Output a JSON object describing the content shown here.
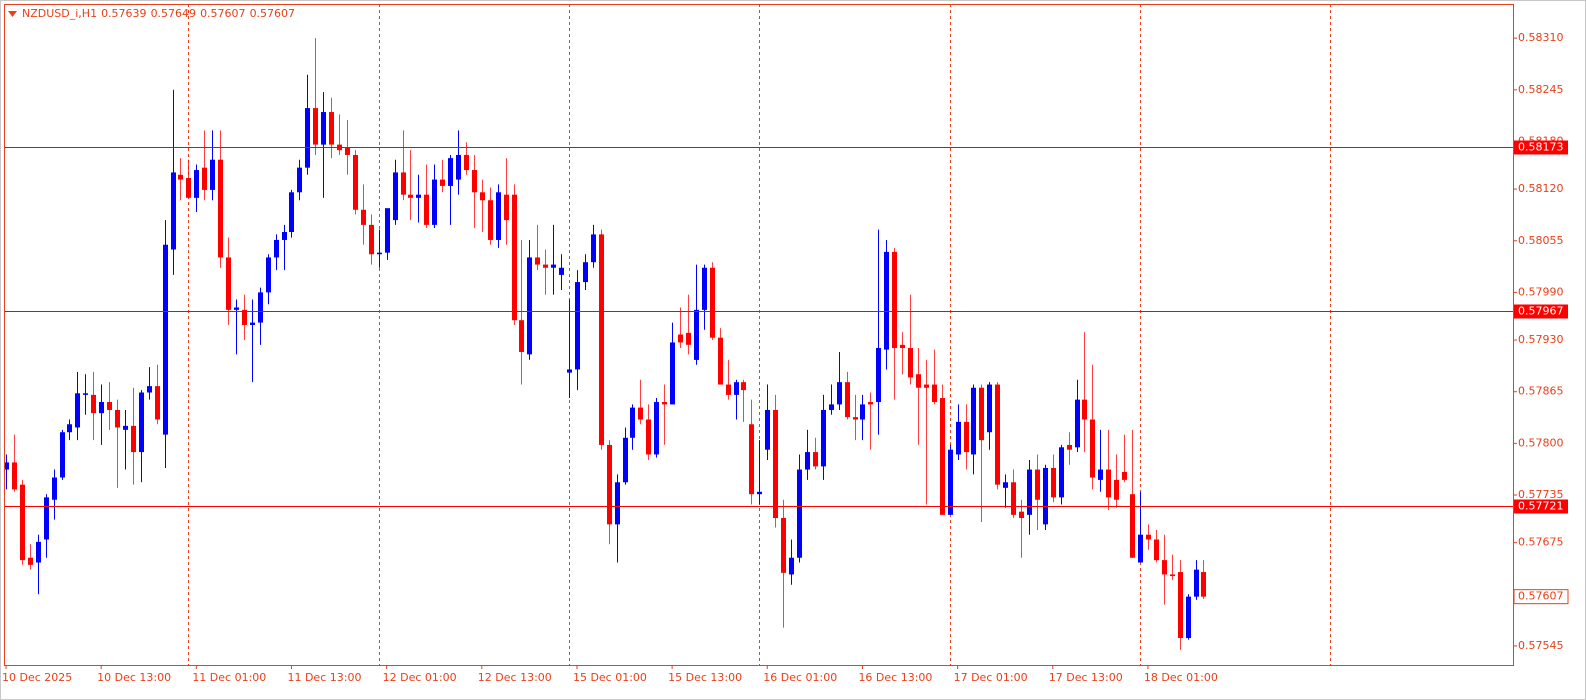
{
  "chart_data": {
    "type": "candlestick",
    "symbol": "NZDUSD_i,H1",
    "header_ohlc": [
      0.57639,
      0.57649,
      0.57607,
      0.57607
    ],
    "up_color": "#0000ff",
    "down_color": "#ff0000",
    "axis_color": "#e8401a",
    "level_color": "#ff0000",
    "ylim": [
      0.57521,
      0.58353
    ],
    "yticks": [
      {
        "value": 0.5831,
        "label": "0.58310"
      },
      0.58245,
      {
        "value": 0.5818,
        "label": "0.58180"
      },
      {
        "value": 0.5812,
        "label": "0.58120"
      },
      0.58055,
      {
        "value": 0.5799,
        "label": "0.57990"
      },
      {
        "value": 0.5793,
        "label": "0.57930"
      },
      0.57865,
      {
        "value": 0.578,
        "label": "0.57800"
      },
      0.57735,
      0.57675,
      0.57545
    ],
    "levels": [
      0.58173,
      0.57967,
      0.57721
    ],
    "last_price": 0.57607,
    "categories": [
      "10 Dec 2025",
      null,
      null,
      null,
      null,
      null,
      null,
      null,
      null,
      null,
      null,
      null,
      "10 Dec 13:00",
      null,
      null,
      null,
      null,
      null,
      null,
      null,
      null,
      null,
      null,
      null,
      "11 Dec 01:00",
      null,
      null,
      null,
      null,
      null,
      null,
      null,
      null,
      null,
      null,
      null,
      "11 Dec 13:00",
      null,
      null,
      null,
      null,
      null,
      null,
      null,
      null,
      null,
      null,
      null,
      "12 Dec 01:00",
      null,
      null,
      null,
      null,
      null,
      null,
      null,
      null,
      null,
      null,
      null,
      "12 Dec 13:00",
      null,
      null,
      null,
      null,
      null,
      null,
      null,
      null,
      null,
      null,
      null,
      "15 Dec 01:00",
      null,
      null,
      null,
      null,
      null,
      null,
      null,
      null,
      null,
      null,
      null,
      "15 Dec 13:00",
      null,
      null,
      null,
      null,
      null,
      null,
      null,
      null,
      null,
      null,
      null,
      "16 Dec 01:00",
      null,
      null,
      null,
      null,
      null,
      null,
      null,
      null,
      null,
      null,
      null,
      "16 Dec 13:00",
      null,
      null,
      null,
      null,
      null,
      null,
      null,
      null,
      null,
      null,
      null,
      "17 Dec 01:00",
      null,
      null,
      null,
      null,
      null,
      null,
      null,
      null,
      null,
      null,
      null,
      "17 Dec 13:00",
      null,
      null,
      null,
      null,
      null,
      null,
      null,
      null,
      null,
      null,
      null,
      "18 Dec 01:00",
      null,
      null,
      null,
      null,
      null,
      null,
      null
    ],
    "open": [
      0.57767,
      0.57776,
      0.57748,
      0.57656,
      0.5765,
      0.57679,
      0.57729,
      0.57757,
      0.57814,
      0.5782,
      0.57861,
      0.57861,
      0.57838,
      0.57852,
      0.57842,
      0.57817,
      0.57822,
      0.57789,
      0.57864,
      0.57872,
      0.57811,
      0.58044,
      0.58138,
      0.58134,
      0.58109,
      0.58147,
      0.58119,
      0.58157,
      0.58034,
      0.57968,
      0.57968,
      0.57949,
      0.57952,
      0.5799,
      0.58034,
      0.58056,
      0.58066,
      0.58116,
      0.58147,
      0.58222,
      0.58176,
      0.58217,
      0.58176,
      0.58172,
      0.58163,
      0.58094,
      0.58075,
      0.58038,
      0.5804,
      0.58081,
      0.58141,
      0.58113,
      0.58109,
      0.58113,
      0.58075,
      0.58132,
      0.58124,
      0.58132,
      0.58163,
      0.58144,
      0.58116,
      0.58106,
      0.58056,
      0.58113,
      0.58113,
      0.57955,
      0.57912,
      0.58034,
      0.58025,
      0.58021,
      0.58012,
      0.57889,
      0.57893,
      0.58003,
      0.58028,
      0.58063,
      0.57798,
      0.57698,
      0.57751,
      0.57807,
      0.57845,
      0.5783,
      0.57786,
      0.57852,
      0.57849,
      0.57937,
      0.57939,
      0.57905,
      0.57968,
      0.58021,
      0.57933,
      0.57874,
      0.57861,
      0.57877,
      0.57824,
      0.57736,
      0.57792,
      0.57842,
      0.57706,
      0.57635,
      0.57656,
      0.57767,
      0.57789,
      0.57771,
      0.57842,
      0.57849,
      0.57877,
      0.57833,
      0.5783,
      0.57852,
      0.57852,
      0.57918,
      0.58041,
      0.57924,
      0.5792,
      0.57887,
      0.57874,
      0.57874,
      0.57857,
      0.5771,
      0.57786,
      0.57827,
      0.57786,
      0.5787,
      0.57814,
      0.57874,
      0.57744,
      0.57751,
      0.57714,
      0.5771,
      0.57767,
      0.57698,
      0.57769,
      0.57732,
      0.57798,
      0.57795,
      0.57855,
      0.5783,
      0.57754,
      0.57767,
      0.57754,
      0.57764,
      0.57736,
      0.5765,
      0.57685,
      0.57679,
      0.57653,
      0.57635,
      0.57638,
      0.57555,
      0.57607,
      0.57638
    ],
    "high": [
      0.57786,
      0.57811,
      0.57754,
      0.57673,
      0.57685,
      0.57736,
      0.57767,
      0.57817,
      0.5783,
      0.5789,
      0.57887,
      0.5789,
      0.57874,
      0.57877,
      0.57855,
      0.57842,
      0.5787,
      0.57867,
      0.57896,
      0.57899,
      0.58081,
      0.58245,
      0.58159,
      0.58157,
      0.58151,
      0.58194,
      0.58194,
      0.58194,
      0.58059,
      0.57981,
      0.57987,
      0.57981,
      0.57996,
      0.58038,
      0.58063,
      0.58075,
      0.58119,
      0.58157,
      0.58264,
      0.5831,
      0.58242,
      0.58235,
      0.58214,
      0.58207,
      0.58169,
      0.58126,
      0.58088,
      0.58069,
      0.58094,
      0.58157,
      0.58194,
      0.58169,
      0.58138,
      0.58151,
      0.58151,
      0.58157,
      0.58163,
      0.58194,
      0.58179,
      0.58163,
      0.58132,
      0.58122,
      0.58126,
      0.58159,
      0.58126,
      0.58056,
      0.58056,
      0.58075,
      0.58044,
      0.58075,
      0.58038,
      0.57981,
      0.58018,
      0.58038,
      0.58075,
      0.58069,
      0.57804,
      0.57761,
      0.5782,
      0.57849,
      0.5788,
      0.57849,
      0.57857,
      0.57874,
      0.57952,
      0.57971,
      0.57987,
      0.58025,
      0.58025,
      0.58028,
      0.57945,
      0.57905,
      0.5788,
      0.5788,
      0.57855,
      0.57804,
      0.57874,
      0.57861,
      0.57729,
      0.57679,
      0.57786,
      0.57817,
      0.57807,
      0.57861,
      0.57874,
      0.57915,
      0.5789,
      0.57861,
      0.57861,
      0.57864,
      0.58069,
      0.58056,
      0.58046,
      0.5794,
      0.57987,
      0.5792,
      0.57905,
      0.57918,
      0.57874,
      0.57798,
      0.57849,
      0.57849,
      0.57874,
      0.57874,
      0.57877,
      0.57877,
      0.57761,
      0.57767,
      0.57729,
      0.57779,
      0.57786,
      0.57773,
      0.57786,
      0.57798,
      0.57814,
      0.5788,
      0.5794,
      0.57899,
      0.57817,
      0.57817,
      0.57786,
      0.57811,
      0.57817,
      0.57739,
      0.57698,
      0.57691,
      0.57685,
      0.5766,
      0.57653,
      0.5761,
      0.57653,
      0.57653
    ],
    "low": [
      0.57742,
      0.57739,
      0.57647,
      0.57641,
      0.5761,
      0.57656,
      0.57704,
      0.57754,
      0.57804,
      0.57804,
      0.57836,
      0.57804,
      0.57798,
      0.57817,
      0.57744,
      0.57767,
      0.57748,
      0.57751,
      0.57855,
      0.57824,
      0.57769,
      0.58012,
      0.58106,
      0.58113,
      0.58091,
      0.58106,
      0.58106,
      0.58021,
      0.57949,
      0.57912,
      0.5793,
      0.57877,
      0.57924,
      0.57975,
      0.58018,
      0.58018,
      0.58059,
      0.58106,
      0.58138,
      0.58163,
      0.58109,
      0.58159,
      0.58163,
      0.58138,
      0.58088,
      0.5805,
      0.58025,
      0.58021,
      0.58031,
      0.58075,
      0.58106,
      0.58081,
      0.58078,
      0.58071,
      0.58071,
      0.58116,
      0.58075,
      0.58113,
      0.58138,
      0.58071,
      0.58066,
      0.5805,
      0.58046,
      0.5805,
      0.57949,
      0.57874,
      0.57905,
      0.58018,
      0.57987,
      0.57987,
      0.57993,
      0.57857,
      0.57867,
      0.57993,
      0.58021,
      0.57792,
      0.57673,
      0.5765,
      0.57748,
      0.57792,
      0.57824,
      0.57779,
      0.57782,
      0.57798,
      0.57849,
      0.5792,
      0.57912,
      0.57899,
      0.57943,
      0.5793,
      0.57874,
      0.57855,
      0.5783,
      0.57827,
      0.57723,
      0.57723,
      0.57779,
      0.57694,
      0.57568,
      0.57622,
      0.5765,
      0.57754,
      0.57767,
      0.57754,
      0.57836,
      0.57842,
      0.5783,
      0.57804,
      0.57804,
      0.57792,
      0.57811,
      0.57893,
      0.57855,
      0.57887,
      0.57874,
      0.57798,
      0.57723,
      0.57849,
      0.5771,
      0.5771,
      0.57779,
      0.57767,
      0.57761,
      0.57701,
      0.57792,
      0.57742,
      0.57719,
      0.57706,
      0.57656,
      0.57685,
      0.57691,
      0.57691,
      0.57726,
      0.57723,
      0.57773,
      0.57789,
      0.57789,
      0.57742,
      0.57739,
      0.57716,
      0.57719,
      0.57751,
      0.57656,
      0.5765,
      0.57666,
      0.5765,
      0.57597,
      0.57628,
      0.5754,
      0.57553,
      0.57603,
      0.57604
    ],
    "close": [
      0.57776,
      0.57742,
      0.57653,
      0.57647,
      0.57676,
      0.57732,
      0.57757,
      0.57814,
      0.57824,
      0.57863,
      0.57863,
      0.57838,
      0.57852,
      0.57842,
      0.5782,
      0.57822,
      0.57789,
      0.57864,
      0.57872,
      0.5783,
      0.5805,
      0.58141,
      0.58132,
      0.58109,
      0.58144,
      0.58119,
      0.58157,
      0.58034,
      0.57968,
      0.57971,
      0.57949,
      0.57952,
      0.5799,
      0.58034,
      0.58056,
      0.58066,
      0.58116,
      0.58147,
      0.58222,
      0.58176,
      0.58217,
      0.58176,
      0.58169,
      0.58163,
      0.58094,
      0.58075,
      0.58038,
      0.5804,
      0.58096,
      0.58141,
      0.58113,
      0.58109,
      0.58113,
      0.58075,
      0.58132,
      0.58124,
      0.58159,
      0.58163,
      0.58144,
      0.58116,
      0.58106,
      0.58056,
      0.58116,
      0.58081,
      0.57955,
      0.57915,
      0.58034,
      0.58025,
      0.58021,
      0.58025,
      0.58021,
      0.57893,
      0.58003,
      0.58028,
      0.58063,
      0.57798,
      0.57698,
      0.57751,
      0.57807,
      0.57845,
      0.5783,
      0.57786,
      0.57852,
      0.57849,
      0.57927,
      0.57927,
      0.57924,
      0.57968,
      0.58021,
      0.57933,
      0.57874,
      0.57861,
      0.57877,
      0.57867,
      0.57736,
      0.57739,
      0.57842,
      0.57706,
      0.57637,
      0.57656,
      0.57767,
      0.57789,
      0.57771,
      0.57842,
      0.57849,
      0.57877,
      0.57833,
      0.5783,
      0.57849,
      0.57849,
      0.5792,
      0.58041,
      0.5792,
      0.5792,
      0.57883,
      0.5787,
      0.5787,
      0.57852,
      0.5771,
      0.57792,
      0.57827,
      0.57789,
      0.5787,
      0.57804,
      0.57874,
      0.57748,
      0.57751,
      0.5771,
      0.57706,
      0.57767,
      0.57729,
      0.57769,
      0.57732,
      0.57795,
      0.57792,
      0.57855,
      0.5783,
      0.57757,
      0.57767,
      0.57732,
      0.57729,
      0.57754,
      0.57656,
      0.57685,
      0.57679,
      0.57653,
      0.57635,
      0.57633,
      0.57555,
      0.57607,
      0.57641,
      0.57607
    ]
  }
}
